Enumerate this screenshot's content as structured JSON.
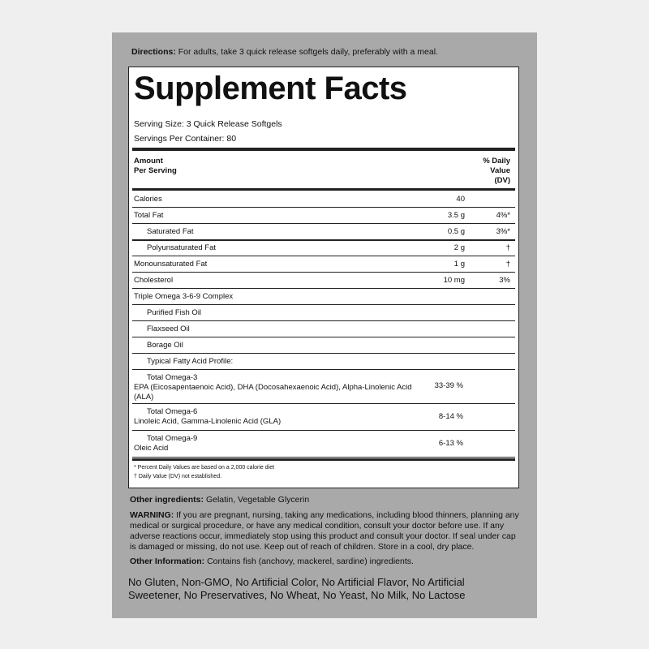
{
  "directions": {
    "label": "Directions:",
    "text": "For adults, take 3 quick release softgels daily, preferably with a meal."
  },
  "facts": {
    "title": "Supplement Facts",
    "serving_size": "Serving Size: 3 Quick Release Softgels",
    "servings_per_container": "Servings Per Container: 80",
    "header": {
      "amount": [
        "Amount",
        "Per Serving"
      ],
      "dv": [
        "% Daily",
        "Value",
        "(DV)"
      ]
    },
    "rows": [
      {
        "name": [
          "Calories"
        ],
        "amount": "40"
      },
      {
        "name": [
          "Total Fat"
        ],
        "amount": "3.5 g",
        "dv": "4%*"
      },
      {
        "name": [
          "Saturated Fat"
        ],
        "amount": "0.5 g",
        "dv": "3%*"
      },
      {
        "name": [
          "Polyunsaturated Fat"
        ],
        "amount": "2 g",
        "dv": "†"
      },
      {
        "name": [
          "Monounsaturated Fat"
        ],
        "amount": "1 g",
        "dv": "†"
      },
      {
        "name": [
          "Cholesterol"
        ],
        "amount": "10 mg",
        "dv": "3%"
      },
      {
        "name": [
          "Triple Omega 3-6-9 Complex"
        ]
      },
      {
        "name": [
          "Purified Fish Oil"
        ]
      },
      {
        "name": [
          "Flaxseed Oil"
        ]
      },
      {
        "name": [
          "Borage Oil"
        ]
      },
      {
        "name": [
          "Typical Fatty Acid Profile:"
        ]
      },
      {
        "name": [
          "Total Omega-3",
          "EPA (Eicosapentaenoic Acid), DHA (Docosahexaenoic Acid), Alpha-Linolenic Acid",
          "(ALA)"
        ],
        "amount": "33-39 %"
      },
      {
        "name": [
          "Total Omega-6",
          "Linoleic Acid, Gamma-Linolenic Acid (GLA)"
        ],
        "amount": "8-14 %"
      },
      {
        "name": [
          "Total Omega-9",
          "Oleic Acid"
        ],
        "amount": "6-13 %"
      }
    ],
    "footnotes": [
      "* Percent Daily Values are based on a 2,000 calorie diet",
      "† Daily Value (DV) not established."
    ]
  },
  "other_ingredients": {
    "label": "Other ingredients:",
    "text": "Gelatin, Vegetable Glycerin"
  },
  "warning": {
    "label": "WARNING:",
    "text": "If you are pregnant, nursing, taking any medications, including blood thinners, planning any medical or surgical procedure, or have any medical condition, consult your doctor before use. If any adverse reactions occur, immediately stop using this product and consult your doctor. If seal under cap is damaged or missing, do not use. Keep out of reach of children. Store in a cool, dry place."
  },
  "other_information": {
    "label": "Other Information:",
    "text": "Contains fish (anchovy, mackerel, sardine) ingredients."
  },
  "free_from": "No Gluten, Non-GMO, No Artificial Color, No Artificial Flavor, No Artificial Sweetener, No Preservatives, No Wheat, No Yeast, No Milk, No Lactose"
}
